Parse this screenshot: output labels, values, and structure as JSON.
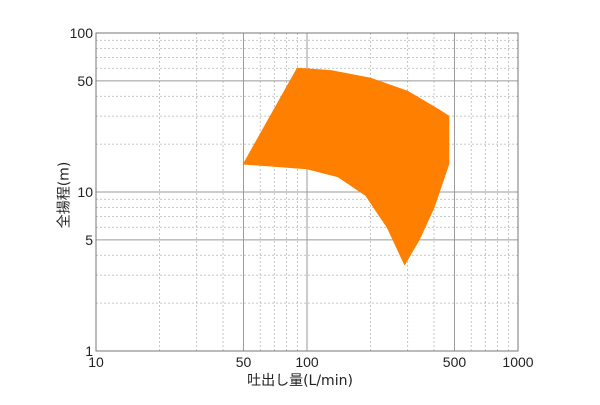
{
  "chart_data": {
    "type": "area",
    "xscale": "log",
    "yscale": "log",
    "xlim": [
      10,
      1000
    ],
    "ylim": [
      1,
      100
    ],
    "xlabel": "吐出し量(L/min)",
    "ylabel": "全揚程(m)",
    "x_ticks": [
      10,
      50,
      100,
      500,
      1000
    ],
    "x_tick_labels": [
      "10",
      "50",
      "100",
      "500",
      "1000"
    ],
    "y_ticks": [
      1,
      5,
      10,
      50,
      100
    ],
    "y_tick_labels": [
      "1",
      "5",
      "10",
      "50",
      "100"
    ],
    "grid": true,
    "fill_color": "#ff8000",
    "region": {
      "name": "",
      "outline": [
        {
          "x": 50,
          "y": 15
        },
        {
          "x": 90,
          "y": 60
        },
        {
          "x": 130,
          "y": 58
        },
        {
          "x": 200,
          "y": 52
        },
        {
          "x": 300,
          "y": 43
        },
        {
          "x": 420,
          "y": 33
        },
        {
          "x": 470,
          "y": 30
        },
        {
          "x": 470,
          "y": 15
        },
        {
          "x": 400,
          "y": 8
        },
        {
          "x": 340,
          "y": 5
        },
        {
          "x": 290,
          "y": 3.5
        },
        {
          "x": 240,
          "y": 6
        },
        {
          "x": 190,
          "y": 9.5
        },
        {
          "x": 140,
          "y": 12.5
        },
        {
          "x": 100,
          "y": 14
        },
        {
          "x": 50,
          "y": 15
        }
      ]
    }
  }
}
